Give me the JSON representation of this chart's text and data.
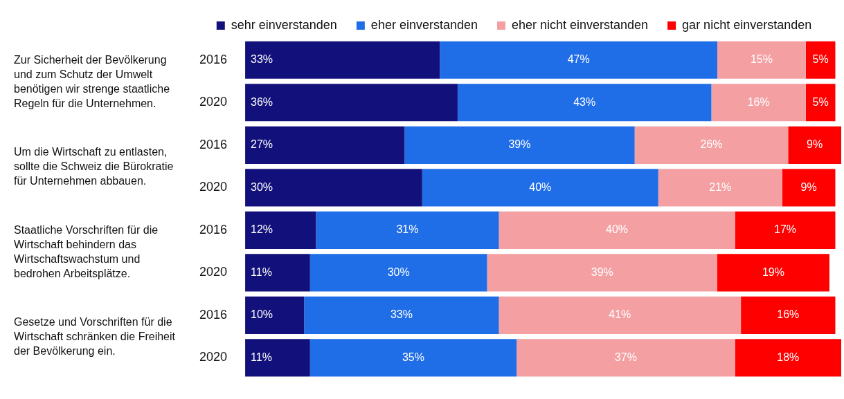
{
  "chart_data": {
    "type": "bar",
    "orientation": "horizontal",
    "stacked": true,
    "legend": "top",
    "tick_labels": "y",
    "categories": [
      "2016",
      "2020",
      "2016",
      "2020",
      "2016",
      "2020",
      "2016",
      "2020"
    ],
    "series": [
      {
        "name": "sehr einverstanden",
        "color": "#12107a",
        "values": [
          33,
          36,
          27,
          30,
          12,
          11,
          10,
          11
        ],
        "value_labels": [
          "33%",
          "36%",
          "27%",
          "30%",
          "12%",
          "11%",
          "10%",
          "11%"
        ]
      },
      {
        "name": "eher einverstanden",
        "color": "#1f6ee8",
        "values": [
          47,
          43,
          39,
          40,
          31,
          30,
          33,
          35
        ],
        "value_labels": [
          "47%",
          "43%",
          "39%",
          "40%",
          "31%",
          "30%",
          "33%",
          "35%"
        ]
      },
      {
        "name": "eher nicht einverstanden",
        "color": "#f4a0a3",
        "values": [
          15,
          16,
          26,
          21,
          40,
          39,
          41,
          37
        ],
        "value_labels": [
          "15%",
          "16%",
          "26%",
          "21%",
          "40%",
          "39%",
          "41%",
          "37%"
        ]
      },
      {
        "name": "gar nicht einverstanden",
        "color": "#ff0000",
        "values": [
          5,
          5,
          9,
          9,
          17,
          19,
          16,
          18
        ],
        "value_labels": [
          "5%",
          "5%",
          "9%",
          "9%",
          "17%",
          "19%",
          "16%",
          "18%"
        ]
      }
    ],
    "annotations": [
      "Zur Sicherheit der Bevölkerung und zum Schutz der Umwelt benötigen wir strenge staatliche Regeln für die Unternehmen.",
      "Um die Wirtschaft zu entlasten, sollte die Schweiz die Bürokratie für Unternehmen abbauen.",
      "Staatliche Vorschriften für die Wirtschaft behindern das Wirtschaftswachstum und bedrohen Arbeitsplätze.",
      "Gesetze und Vorschriften für die Wirtschaft schränken die Freiheit der Bevölkerung ein."
    ]
  }
}
